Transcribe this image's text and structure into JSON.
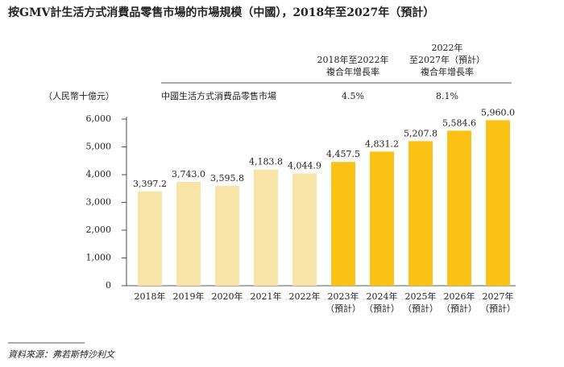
{
  "chart_data": {
    "type": "bar",
    "title": "按GMV計生活方式消費品零售市場的市場規模（中國），2018年至2027年（預計）",
    "y_unit": "（人民幣十億元）",
    "categories": [
      "2018年",
      "2019年",
      "2020年",
      "2021年",
      "2022年",
      "2023年",
      "2024年",
      "2025年",
      "2026年",
      "2027年"
    ],
    "category_notes": [
      null,
      null,
      null,
      null,
      null,
      "（預計）",
      "（預計）",
      "（預計）",
      "（預計）",
      "（預計）"
    ],
    "values": [
      3397.2,
      3743.0,
      3595.8,
      4183.8,
      4044.9,
      4457.5,
      4831.2,
      5207.8,
      5584.6,
      5960.0
    ],
    "value_labels": [
      "3,397.2",
      "3,743.0",
      "3,595.8",
      "4,183.8",
      "4,044.9",
      "4,457.5",
      "4,831.2",
      "5,207.8",
      "5,584.6",
      "5,960.0"
    ],
    "colors": [
      "#f9e4a8",
      "#f9e4a8",
      "#f9e4a8",
      "#f9e4a8",
      "#f9e4a8",
      "#fbc114",
      "#fbc114",
      "#fbc114",
      "#fbc114",
      "#fbc114"
    ],
    "ylim": [
      0,
      6000
    ],
    "yticks": [
      0,
      {
        "value": 1000,
        "label": "1,000"
      },
      {
        "value": 2000,
        "label": "2,000"
      },
      {
        "value": 3000,
        "label": "3,000"
      },
      {
        "value": 4000,
        "label": "4,000"
      },
      {
        "value": 5000,
        "label": "5,000"
      },
      {
        "value": 6000,
        "label": "6,000"
      }
    ],
    "cagr_table": {
      "row_label": "中國生活方式消費品零售市場",
      "headers": [
        [
          "2018年至2022年",
          "複合年增長率"
        ],
        [
          "2022年",
          "至2027年（預計）",
          "複合年增長率"
        ]
      ],
      "value_labels": [
        "4.5%",
        "8.1%"
      ]
    },
    "source": "資料來源：弗若斯特沙利文"
  }
}
